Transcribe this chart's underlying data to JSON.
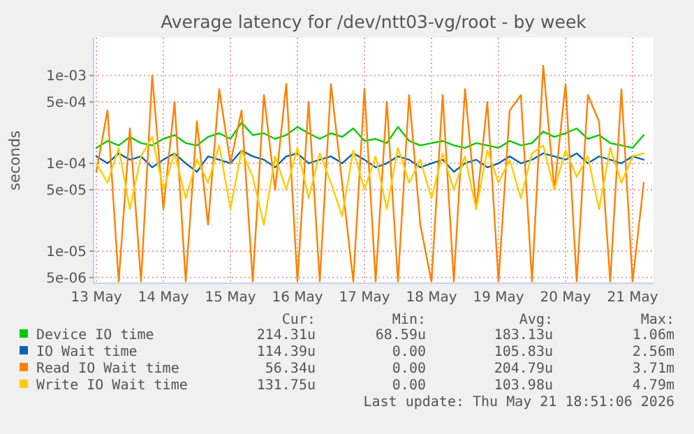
{
  "chart_data": {
    "type": "line",
    "title": "Average latency for /dev/ntt03-vg/root - by week",
    "ylabel": "seconds",
    "log": true,
    "grid": true,
    "legend": "bottom",
    "line_style": "solid",
    "xlim": [
      "2026-05-13T11:00",
      "2026-05-21T19:30"
    ],
    "xticks": [
      {
        "value": "2026-05-13T12:00",
        "label": "13 May"
      },
      {
        "value": "2026-05-14T12:00",
        "label": "14 May"
      },
      {
        "value": "2026-05-15T12:00",
        "label": "15 May"
      },
      {
        "value": "2026-05-16T12:00",
        "label": "16 May"
      },
      {
        "value": "2026-05-17T12:00",
        "label": "17 May"
      },
      {
        "value": "2026-05-18T12:00",
        "label": "18 May"
      },
      {
        "value": "2026-05-19T12:00",
        "label": "19 May"
      },
      {
        "value": "2026-05-20T12:00",
        "label": "20 May"
      },
      {
        "value": "2026-05-21T12:00",
        "label": "21 May"
      }
    ],
    "ylim": [
      4.3e-06,
      0.0027
    ],
    "yticks": [
      {
        "value": 5e-06,
        "label": "5e-06"
      },
      {
        "value": 1e-05,
        "label": "1e-05"
      },
      {
        "value": 5e-05,
        "label": "5e-05"
      },
      {
        "value": 0.0001,
        "label": "1e-04"
      },
      {
        "value": 0.0005,
        "label": "5e-04"
      },
      {
        "value": 0.001,
        "label": "1e-03"
      }
    ],
    "x": [
      "2026-05-13T12:00",
      "2026-05-13T16:00",
      "2026-05-13T20:00",
      "2026-05-14T00:00",
      "2026-05-14T04:00",
      "2026-05-14T08:00",
      "2026-05-14T12:00",
      "2026-05-14T16:00",
      "2026-05-14T20:00",
      "2026-05-15T00:00",
      "2026-05-15T04:00",
      "2026-05-15T08:00",
      "2026-05-15T12:00",
      "2026-05-15T16:00",
      "2026-05-15T20:00",
      "2026-05-16T00:00",
      "2026-05-16T04:00",
      "2026-05-16T08:00",
      "2026-05-16T12:00",
      "2026-05-16T16:00",
      "2026-05-16T20:00",
      "2026-05-17T00:00",
      "2026-05-17T04:00",
      "2026-05-17T08:00",
      "2026-05-17T12:00",
      "2026-05-17T16:00",
      "2026-05-17T20:00",
      "2026-05-18T00:00",
      "2026-05-18T04:00",
      "2026-05-18T08:00",
      "2026-05-18T12:00",
      "2026-05-18T16:00",
      "2026-05-18T20:00",
      "2026-05-19T00:00",
      "2026-05-19T04:00",
      "2026-05-19T08:00",
      "2026-05-19T12:00",
      "2026-05-19T16:00",
      "2026-05-19T20:00",
      "2026-05-20T00:00",
      "2026-05-20T04:00",
      "2026-05-20T08:00",
      "2026-05-20T12:00",
      "2026-05-20T16:00",
      "2026-05-20T20:00",
      "2026-05-21T00:00",
      "2026-05-21T04:00",
      "2026-05-21T08:00",
      "2026-05-21T12:00",
      "2026-05-21T16:00"
    ],
    "series": [
      {
        "name": "Device IO time",
        "color": "#00cc00",
        "values": [
          0.00015,
          0.00018,
          0.00016,
          0.0002,
          0.00017,
          0.00016,
          0.00019,
          0.00021,
          0.00017,
          0.00016,
          0.0002,
          0.00022,
          0.00019,
          0.00029,
          0.00021,
          0.00022,
          0.00019,
          0.00021,
          0.00026,
          0.00022,
          0.00019,
          0.00022,
          0.0002,
          0.00025,
          0.00018,
          0.00019,
          0.00017,
          0.00026,
          0.00018,
          0.00016,
          0.00017,
          0.00018,
          0.00016,
          0.00015,
          0.00017,
          0.00016,
          0.00015,
          0.00018,
          0.00016,
          0.00017,
          0.00023,
          0.0002,
          0.00022,
          0.00025,
          0.00019,
          0.00021,
          0.00017,
          0.00016,
          0.00015,
          0.00021
        ]
      },
      {
        "name": "IO Wait time",
        "color": "#0066b3",
        "values": [
          0.00012,
          0.0001,
          0.00013,
          0.00011,
          0.00012,
          9e-05,
          0.00011,
          0.00013,
          0.0001,
          8e-05,
          0.00012,
          0.00011,
          0.0001,
          0.00014,
          0.00012,
          0.00011,
          9e-05,
          0.00012,
          0.00013,
          0.0001,
          0.00011,
          0.00012,
          0.0001,
          0.00013,
          0.00011,
          9e-05,
          0.0001,
          0.00012,
          0.00011,
          9e-05,
          0.0001,
          0.00011,
          8e-05,
          0.0001,
          0.00011,
          9e-05,
          0.0001,
          0.00012,
          0.0001,
          0.00011,
          0.00013,
          0.00012,
          0.00011,
          0.00013,
          0.0001,
          0.00012,
          0.00011,
          0.0001,
          0.00012,
          0.00011
        ]
      },
      {
        "name": "Read IO Wait time",
        "color": "#ff8000",
        "values": [
          8e-05,
          0.0004,
          4.5e-06,
          0.00025,
          4.5e-06,
          0.001,
          3e-05,
          0.0005,
          4.5e-06,
          0.0003,
          2e-05,
          0.0007,
          0.0001,
          0.0004,
          4.5e-06,
          0.0006,
          5e-05,
          0.0008,
          4.5e-06,
          0.0005,
          4.5e-06,
          0.0008,
          6e-05,
          4.5e-06,
          0.0007,
          4.5e-06,
          0.0005,
          4.5e-06,
          0.0006,
          2e-05,
          4.5e-06,
          0.0006,
          4.5e-06,
          0.0007,
          3e-05,
          0.0005,
          4.5e-06,
          0.0004,
          0.0006,
          4.5e-06,
          0.0013,
          5e-05,
          0.0008,
          4.5e-06,
          0.0006,
          0.0003,
          4.5e-06,
          0.0007,
          4.5e-06,
          6e-05
        ]
      },
      {
        "name": "Write IO Wait time",
        "color": "#ffcc00",
        "values": [
          0.0001,
          6e-05,
          0.00015,
          3e-05,
          0.00012,
          0.0002,
          5e-05,
          0.00013,
          4e-05,
          0.00011,
          6e-05,
          0.00016,
          3e-05,
          0.00014,
          7e-05,
          2e-05,
          0.00012,
          5e-05,
          0.00015,
          4e-05,
          0.00013,
          6e-05,
          2.5e-05,
          0.00014,
          5e-05,
          0.00012,
          3e-05,
          0.00015,
          6e-05,
          0.00011,
          4e-05,
          0.00013,
          5e-05,
          0.00012,
          3e-05,
          0.00014,
          6e-05,
          0.00011,
          4e-05,
          0.00013,
          0.00016,
          5e-05,
          0.00014,
          7e-05,
          0.00012,
          3e-05,
          0.00015,
          6e-05,
          0.00012,
          0.00013
        ]
      }
    ],
    "annotations": [
      "Cur:",
      "Min:",
      "Avg:",
      "Max:",
      "214.31u",
      "68.59u",
      "183.13u",
      "1.06m",
      "114.39u",
      "0.00",
      "105.83u",
      "2.56m",
      "56.34u",
      "0.00",
      "204.79u",
      "3.71m",
      "131.75u",
      "0.00",
      "103.98u",
      "4.79m",
      "Last update: Thu May 21 18:51:06 2026"
    ]
  }
}
